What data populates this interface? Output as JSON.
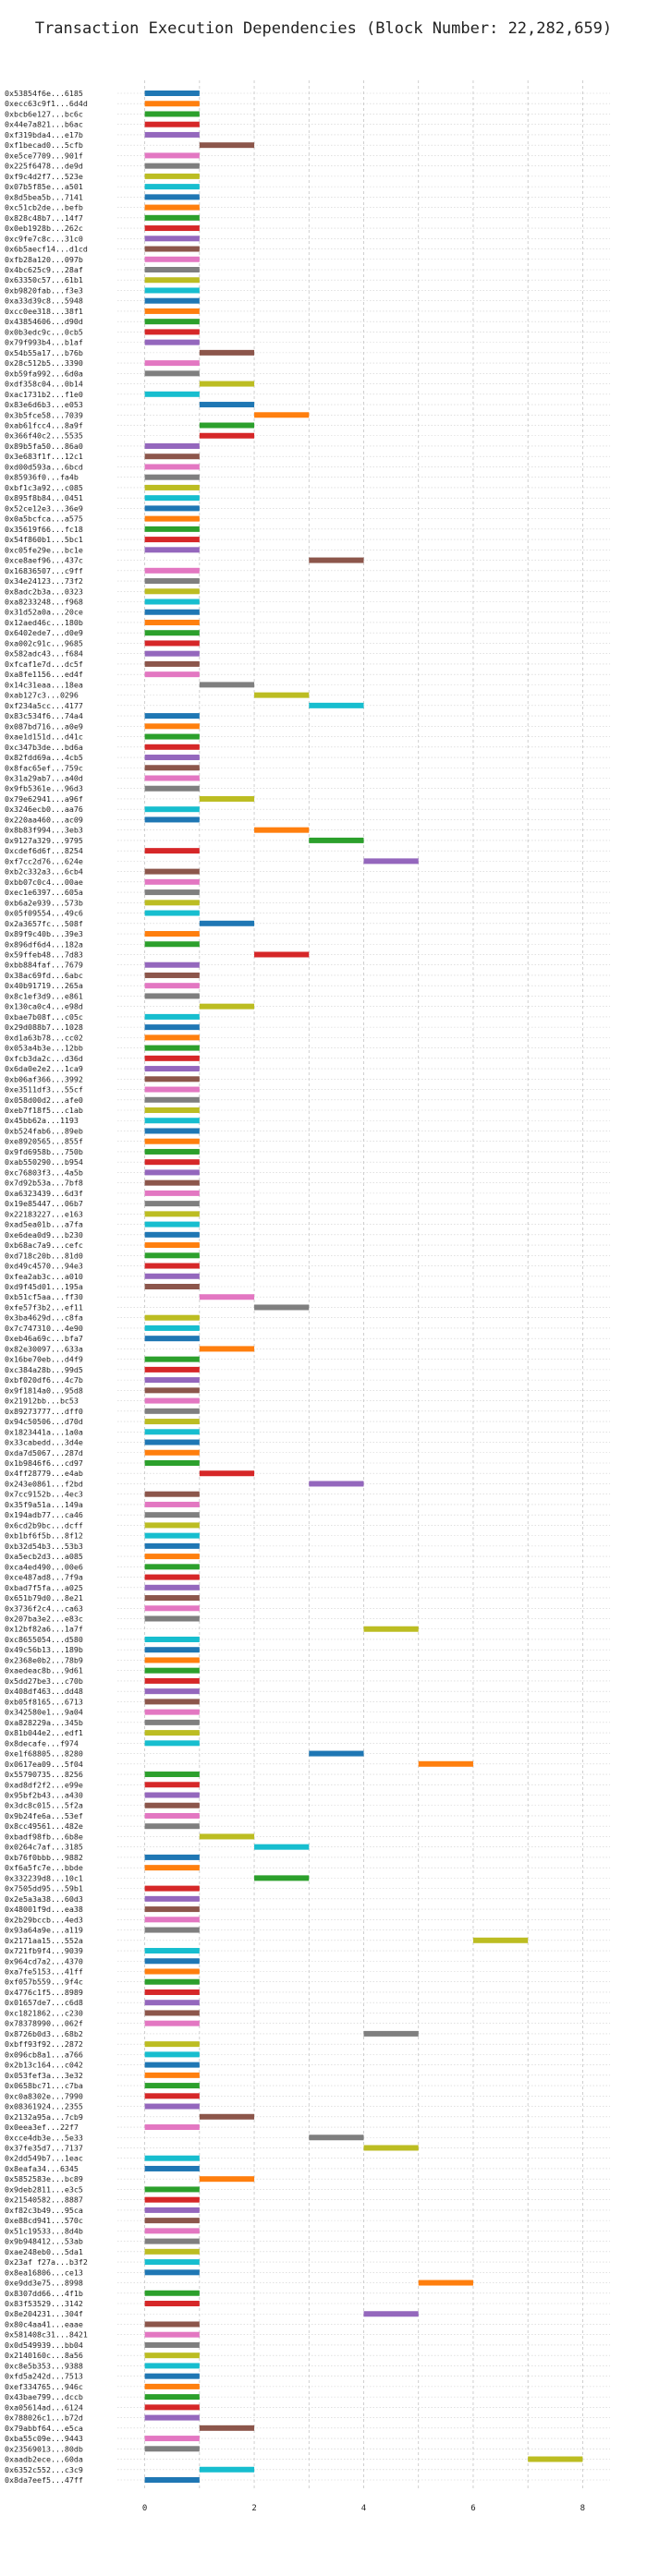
{
  "chart_data": {
    "type": "bar",
    "orientation": "horizontal",
    "title": "Transaction Execution Dependencies (Block Number: 22,282,659)",
    "xlabel": "",
    "ylabel": "",
    "xlim": [
      -0.5,
      8.5
    ],
    "xticks": [
      0,
      2,
      4,
      6,
      8
    ],
    "grid": true,
    "legend": "none",
    "palette": [
      "#1f77b4",
      "#ff7f0e",
      "#2ca02c",
      "#d62728",
      "#9467bd",
      "#8c564b",
      "#e377c2",
      "#7f7f7f",
      "#bcbd22",
      "#17becf"
    ],
    "bar_length": 1,
    "categories": [
      "0x53854f6e...6185",
      "0xecc63c9f1...6d4d",
      "0xbcb6e127...bc6c",
      "0x44e7a821...b6ac",
      "0xf319bda4...e17b",
      "0xf1becad0...5cfb",
      "0xe5ce7709...901f",
      "0x225f6478...de9d",
      "0xf9c4d2f7...523e",
      "0x07b5f85e...a501",
      "0x8d5bea5b...7141",
      "0xc51cb2de...befb",
      "0x828c48b7...14f7",
      "0x0eb1928b...262c",
      "0xc9fe7c8c...31c0",
      "0x6b5aecf14...d1cd",
      "0xfb28a120...097b",
      "0x4bc625c9...28af",
      "0x63350c57...61b1",
      "0xb9820fab...f3e3",
      "0xa33d39c8...5948",
      "0xcc0ee318...38f1",
      "0x43854606...d90d",
      "0x0b3edc9c...0cb5",
      "0x79f993b4...b1af",
      "0x54b55a17...b76b",
      "0x28c512b5...3390",
      "0xb59fa992...6d0a",
      "0xdf358c04...0b14",
      "0xac1731b2...f1e0",
      "0x83e6d6b3...e053",
      "0x3b5fce58...7039",
      "0xab61fcc4...8a9f",
      "0x366f40c2...5535",
      "0x89b5fa50...86a0",
      "0x3e683f1f...12c1",
      "0xd00d593a...6bcd",
      "0x85936f0...fa4b",
      "0xbf1c3a92...c085",
      "0x895f8b84...0451",
      "0x52ce12e3...36e9",
      "0x0a5bcfca...a575",
      "0x35619f66...fc18",
      "0x54f860b1...5bc1",
      "0xc05fe29e...bc1e",
      "0xce8aef96...437c",
      "0x16836507...c9ff",
      "0x34e24123...73f2",
      "0x8adc2b3a...0323",
      "0xa8233248...f968",
      "0x31d52a0a...20ce",
      "0x12aed46c...180b",
      "0x6402ede7...d0e9",
      "0xa002c91c...9685",
      "0x582adc43...f684",
      "0xfcaf1e7d...dc5f",
      "0xa8fe1156...ed4f",
      "0x14c31eaa...18ea",
      "0xab127c3...0296",
      "0xf234a5cc...4177",
      "0x83c534f6...74a4",
      "0x087bd716...a0e9",
      "0xae1d151d...d41c",
      "0xc347b3de...bd6a",
      "0x82fdd69a...4cb5",
      "0x8fac65ef...759c",
      "0x31a29ab7...a40d",
      "0x9fb5361e...96d3",
      "0x79e62941...a96f",
      "0x3246ecb0...aa76",
      "0x220aa460...ac09",
      "0x8b83f994...3eb3",
      "0x9127a329...9795",
      "0xcdef6d6f...8254",
      "0xf7cc2d76...624e",
      "0xb2c332a3...6cb4",
      "0xbb07c0c4...00ae",
      "0xec1e6397...605a",
      "0xb6a2e939...573b",
      "0x05f09554...49c6",
      "0x2a3657fc...508f",
      "0x89f9c40b...39e3",
      "0x896df6d4...182a",
      "0x59ffeb48...7d83",
      "0xbb884faf...7679",
      "0x38ac69fd...6abc",
      "0x40b91719...265a",
      "0x8c1ef3d9...e861",
      "0x130ca0c4...e98d",
      "0xbae7b08f...c05c",
      "0x29d088b7...1028",
      "0xd1a63b78...cc02",
      "0x053a4b3e...12bb",
      "0xfcb3da2c...d36d",
      "0x6da0e2e2...1ca9",
      "0xb06af366...3992",
      "0xe3511df3...55cf",
      "0x058d00d2...afe0",
      "0xeb7f18f5...c1ab",
      "0x45bb62a...1193",
      "0xb524fab6...89eb",
      "0xe8920565...855f",
      "0x9fd6958b...750b",
      "0xab550290...b954",
      "0xc76803f3...4a5b",
      "0x7d92b53a...7bf8",
      "0xa6323439...6d3f",
      "0x19e85447...06b7",
      "0x22183227...e163",
      "0xad5ea01b...a7fa",
      "0xe6dea0d9...b230",
      "0xb68ac7a9...cefc",
      "0xd718c20b...81d0",
      "0xd49c4570...94e3",
      "0xfea2ab3c...a010",
      "0xd9f45d01...195a",
      "0xb51cf5aa...ff30",
      "0xfe57f3b2...ef11",
      "0x3ba4629d...c8fa",
      "0x7c747310...4e90",
      "0xeb46a69c...bfa7",
      "0x82e30097...633a",
      "0x16be70eb...d4f9",
      "0xc384a28b...99d5",
      "0xbf020df6...4c7b",
      "0x9f1814a0...95d8",
      "0x21912bb...bc53",
      "0x89273777...dff0",
      "0x94c50506...d70d",
      "0x1823441a...1a0a",
      "0x33cabedd...3d4e",
      "0xda7d5067...287d",
      "0x1b9846f6...cd97",
      "0x4ff28779...e4ab",
      "0x243e0861...f2bd",
      "0x7cc9152b...4ec3",
      "0x35f9a51a...149a",
      "0x194adb77...ca46",
      "0x6cd2b9bc...dcff",
      "0xb1bf6f5b...8f12",
      "0xb32d54b3...53b3",
      "0xa5ecb2d3...a085",
      "0xca4ed490...00e6",
      "0xce487ad8...7f9a",
      "0xbad7f5fa...a025",
      "0x651b79d0...8e21",
      "0x3736f2c4...ca63",
      "0x207ba3e2...e83c",
      "0x12bf82a6...1a7f",
      "0xc8655054...d580",
      "0x49c56b13...189b",
      "0x2368e0b2...78b9",
      "0xaedeac8b...9d61",
      "0x5dd27be3...c70b",
      "0x408df463...dd48",
      "0xb05f8165...6713",
      "0x342580e1...9a04",
      "0xa828229a...345b",
      "0x81b044e2...edf1",
      "0x8decafe...f974",
      "0xe1f68805...8280",
      "0x0617ea09...5f04",
      "0x55790735...8256",
      "0xad8df2f2...e99e",
      "0x95bf2b43...a430",
      "0x3dc8c015...5f2a",
      "0x9b24fe6a...53ef",
      "0x8cc49561...482e",
      "0xbadf98fb...6b8e",
      "0x0264c7af...3185",
      "0xb76f0bbb...9882",
      "0xf6a5fc7e...bbde",
      "0x332239d8...10c1",
      "0x7505dd95...59b1",
      "0x2e5a3a38...60d3",
      "0x48001f9d...ea38",
      "0x2b29bccb...4ed3",
      "0x93a64a9e...a119",
      "0x2171aa15...552a",
      "0x721fb9f4...9039",
      "0x964cd7a2...4370",
      "0xa7fe5153...41ff",
      "0xf057b559...9f4c",
      "0x4776c1f5...8989",
      "0x01657de7...c6d8",
      "0xc1821862...c230",
      "0x78378990...062f",
      "0x8726b0d3...68b2",
      "0xbff93f92...2872",
      "0x096cb8a1...a766",
      "0x2b13c164...c042",
      "0x053fef3a...3e32",
      "0x0658bc71...c7ba",
      "0xc0a8302e...7990",
      "0x08361924...2355",
      "0x2132a95a...7cb9",
      "0x0eea3ef...22f7",
      "0xcce4db3e...5e33",
      "0x37fe35d7...7137",
      "0x2dd549b7...1eac",
      "0x8eafa34...6345",
      "0x5852583e...bc89",
      "0x9deb2811...e3c5",
      "0x21540582...8887",
      "0xf82c3b49...95ca",
      "0xe88cd941...570c",
      "0x51c19533...8d4b",
      "0x9b948412...53ab",
      "0xae248eb0...5da1",
      "0x23af f27a...b3f2",
      "0x8ea16806...ce13",
      "0xe9dd3e75...8998",
      "0x8307dd66...4f1b",
      "0x83f53529...3142",
      "0x8e204231...304f",
      "0x80c4aa41...eaae",
      "0x581408c31...8421",
      "0x0d549939...bb04",
      "0x2140160c...8a56",
      "0xc8e5b353...9388",
      "0xfd5a242d...7513",
      "0xef334765...946c",
      "0x43bae799...dccb",
      "0xa05614ad...6124",
      "0x788026c1...b72d",
      "0x79abbf64...e5ca",
      "0xba55c09e...9443",
      "0x23569013...80db",
      "0xaadb2ece...60da",
      "0x6352c552...c3c9",
      "0x8da7eef5...47ff"
    ],
    "series": [
      {
        "starts": [
          0,
          0,
          0,
          0,
          0,
          1,
          0,
          0,
          0,
          0,
          0,
          0,
          0,
          0,
          0,
          0,
          0,
          0,
          0,
          0,
          0,
          0,
          0,
          0,
          0,
          1,
          0,
          0,
          1,
          0,
          1,
          2,
          1,
          1,
          0,
          0,
          0,
          0,
          0,
          0,
          0,
          0,
          0,
          0,
          0,
          3,
          0,
          0,
          0,
          0,
          0,
          0,
          0,
          0,
          0,
          0,
          0,
          1,
          2,
          3,
          0,
          0,
          0,
          0,
          0,
          0,
          0,
          0,
          1,
          0,
          0,
          2,
          3,
          0,
          4,
          0,
          0,
          0,
          0,
          0,
          1,
          0,
          0,
          2,
          0,
          0,
          0,
          0,
          1,
          0,
          0,
          0,
          0,
          0,
          0,
          0,
          0,
          0,
          0,
          0,
          0,
          0,
          0,
          0,
          0,
          0,
          0,
          0,
          0,
          0,
          0,
          0,
          0,
          0,
          0,
          0,
          1,
          2,
          0,
          0,
          0,
          1,
          0,
          0,
          0,
          0,
          0,
          0,
          0,
          0,
          0,
          0,
          0,
          1,
          3,
          0,
          0,
          0,
          0,
          0,
          0,
          0,
          0,
          0,
          0,
          0,
          0,
          0,
          4,
          0,
          0,
          0,
          0,
          0,
          0,
          0,
          0,
          0,
          0,
          0,
          3,
          5,
          0,
          0,
          0,
          0,
          0,
          0,
          1,
          2,
          0,
          0,
          2,
          0,
          0,
          0,
          0,
          0,
          6,
          0,
          0,
          0,
          0,
          0,
          0,
          0,
          0,
          4,
          0,
          0,
          0,
          0,
          0,
          0,
          0,
          1,
          0,
          3,
          4,
          0,
          0,
          1,
          0,
          0,
          0,
          0,
          0,
          0,
          0,
          0,
          0,
          5,
          0,
          0,
          4,
          0,
          0,
          0,
          0,
          0,
          0,
          0,
          0,
          0,
          0,
          1,
          0,
          0,
          7,
          1,
          0
        ],
        "colors": [
          0,
          1,
          2,
          3,
          4,
          5,
          6,
          7,
          8,
          9,
          0,
          1,
          2,
          3,
          4,
          5,
          6,
          7,
          8,
          9,
          0,
          1,
          2,
          3,
          4,
          5,
          6,
          7,
          8,
          9,
          0,
          1,
          2,
          3,
          4,
          5,
          6,
          7,
          8,
          9,
          0,
          1,
          2,
          3,
          4,
          5,
          6,
          7,
          8,
          9,
          0,
          1,
          2,
          3,
          4,
          5,
          6,
          7,
          8,
          9,
          0,
          1,
          2,
          3,
          4,
          5,
          6,
          7,
          8,
          9,
          0,
          1,
          2,
          3,
          4,
          5,
          6,
          7,
          8,
          9,
          0,
          1,
          2,
          3,
          4,
          5,
          6,
          7,
          8,
          9,
          0,
          1,
          2,
          3,
          4,
          5,
          6,
          7,
          8,
          9,
          0,
          1,
          2,
          3,
          4,
          5,
          6,
          7,
          8,
          9,
          0,
          1,
          2,
          3,
          4,
          5,
          6,
          7,
          8,
          9,
          0,
          1,
          2,
          3,
          4,
          5,
          6,
          7,
          8,
          9,
          0,
          1,
          2,
          3,
          4,
          5,
          6,
          7,
          8,
          9,
          0,
          1,
          2,
          3,
          4,
          5,
          6,
          7,
          8,
          9,
          0,
          1,
          2,
          3,
          4,
          5,
          6,
          7,
          8,
          9,
          0,
          1,
          2,
          3,
          4,
          5,
          6,
          7,
          8,
          9,
          0,
          1,
          2,
          3,
          4,
          5,
          6,
          7,
          8,
          9,
          0,
          1,
          2,
          3,
          4,
          5,
          6,
          7,
          8,
          9,
          0,
          1,
          2,
          3,
          4,
          5,
          6,
          7,
          8,
          9,
          0,
          1,
          2,
          3,
          4,
          5,
          6,
          7,
          8,
          9,
          0,
          1,
          2,
          3,
          4,
          5,
          6,
          7,
          8,
          9,
          0,
          1,
          2,
          3,
          4,
          5,
          6,
          7,
          8,
          9,
          0
        ]
      }
    ]
  }
}
